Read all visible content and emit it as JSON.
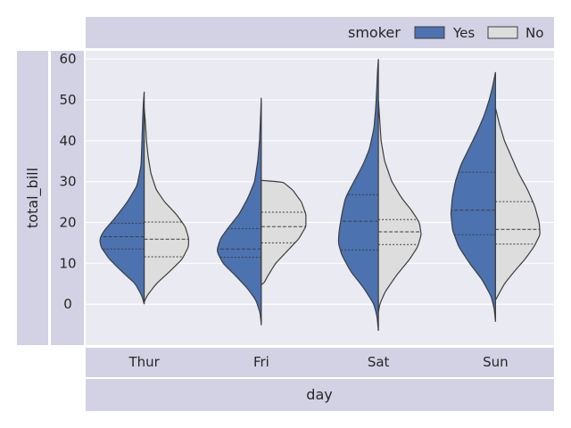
{
  "chart_data": {
    "type": "violin",
    "split": true,
    "title": "",
    "xlabel": "day",
    "ylabel": "total_bill",
    "categories": [
      "Thur",
      "Fri",
      "Sat",
      "Sun"
    ],
    "ylim": [
      -10,
      62
    ],
    "yticks": [
      0,
      10,
      20,
      30,
      40,
      50,
      60
    ],
    "grid": true,
    "legend": {
      "title": "smoker",
      "placement": "top-right",
      "entries": [
        {
          "label": "Yes",
          "color": "#4c72b0"
        },
        {
          "label": "No",
          "color": "#dddddd"
        }
      ]
    },
    "inner": "quartile",
    "series": [
      {
        "name": "Yes",
        "color": "#4c72b0",
        "side": "left",
        "distributions": [
          {
            "min": 0,
            "max": 52,
            "q1": 13.5,
            "median": 16.5,
            "q3": 19.8,
            "profile": [
              [
                0,
                0
              ],
              [
                2,
                0.05
              ],
              [
                5,
                0.2
              ],
              [
                8,
                0.5
              ],
              [
                11,
                0.78
              ],
              [
                14,
                0.97
              ],
              [
                16,
                1.0
              ],
              [
                18,
                0.9
              ],
              [
                21,
                0.66
              ],
              [
                25,
                0.38
              ],
              [
                29,
                0.16
              ],
              [
                34,
                0.07
              ],
              [
                40,
                0.05
              ],
              [
                45,
                0.035
              ],
              [
                49,
                0.02
              ],
              [
                52,
                0
              ]
            ]
          },
          {
            "min": -5,
            "max": 50.5,
            "q1": 11.5,
            "median": 13.5,
            "q3": 18.5,
            "profile": [
              [
                -5,
                0
              ],
              [
                -2,
                0.03
              ],
              [
                1,
                0.12
              ],
              [
                4,
                0.32
              ],
              [
                7,
                0.58
              ],
              [
                10,
                0.86
              ],
              [
                13,
                1.0
              ],
              [
                16,
                0.92
              ],
              [
                19,
                0.72
              ],
              [
                22,
                0.5
              ],
              [
                26,
                0.3
              ],
              [
                30,
                0.15
              ],
              [
                35,
                0.08
              ],
              [
                40,
                0.04
              ],
              [
                45,
                0.02
              ],
              [
                50.5,
                0
              ]
            ]
          },
          {
            "min": -6.5,
            "max": 60,
            "q1": 13.3,
            "median": 20.3,
            "q3": 26.8,
            "profile": [
              [
                -6.5,
                0
              ],
              [
                -3,
                0.03
              ],
              [
                0,
                0.1
              ],
              [
                4,
                0.33
              ],
              [
                8,
                0.62
              ],
              [
                12,
                0.82
              ],
              [
                15,
                0.9
              ],
              [
                18,
                0.88
              ],
              [
                22,
                0.82
              ],
              [
                26,
                0.74
              ],
              [
                30,
                0.55
              ],
              [
                34,
                0.35
              ],
              [
                38,
                0.2
              ],
              [
                43,
                0.1
              ],
              [
                48,
                0.06
              ],
              [
                53,
                0.035
              ],
              [
                57,
                0.02
              ],
              [
                60,
                0
              ]
            ]
          },
          {
            "min": -4.3,
            "max": 56.8,
            "q1": 17,
            "median": 23,
            "q3": 32.3,
            "profile": [
              [
                -4.3,
                0
              ],
              [
                -1,
                0.03
              ],
              [
                2,
                0.1
              ],
              [
                6,
                0.3
              ],
              [
                10,
                0.58
              ],
              [
                14,
                0.82
              ],
              [
                18,
                0.96
              ],
              [
                22,
                1.0
              ],
              [
                26,
                0.97
              ],
              [
                30,
                0.9
              ],
              [
                34,
                0.78
              ],
              [
                38,
                0.6
              ],
              [
                42,
                0.42
              ],
              [
                46,
                0.26
              ],
              [
                50,
                0.14
              ],
              [
                53,
                0.07
              ],
              [
                56.8,
                0
              ]
            ]
          }
        ]
      },
      {
        "name": "No",
        "color": "#dddddd",
        "side": "right",
        "distributions": [
          {
            "min": 0.5,
            "max": 48,
            "q1": 11.6,
            "median": 15.9,
            "q3": 20.1,
            "profile": [
              [
                0.5,
                0
              ],
              [
                2,
                0.06
              ],
              [
                5,
                0.27
              ],
              [
                8,
                0.57
              ],
              [
                11,
                0.85
              ],
              [
                14,
                0.99
              ],
              [
                16,
                1.0
              ],
              [
                19,
                0.92
              ],
              [
                22,
                0.72
              ],
              [
                25,
                0.46
              ],
              [
                28,
                0.27
              ],
              [
                32,
                0.15
              ],
              [
                36,
                0.09
              ],
              [
                40,
                0.05
              ],
              [
                44,
                0.03
              ],
              [
                48,
                0
              ]
            ]
          },
          {
            "min": 4.8,
            "max": 30.3,
            "q1": 15,
            "median": 19,
            "q3": 22.5,
            "profile": [
              [
                4.8,
                0
              ],
              [
                5,
                0.05
              ],
              [
                7,
                0.15
              ],
              [
                10,
                0.32
              ],
              [
                13,
                0.58
              ],
              [
                16,
                0.84
              ],
              [
                19,
                1.0
              ],
              [
                22,
                1.0
              ],
              [
                25,
                0.9
              ],
              [
                28,
                0.7
              ],
              [
                30.2,
                0.45
              ],
              [
                30.3,
                0
              ]
            ]
          },
          {
            "min": -2,
            "max": 50,
            "q1": 14.6,
            "median": 17.7,
            "q3": 20.7,
            "profile": [
              [
                -2,
                0
              ],
              [
                0,
                0.03
              ],
              [
                3,
                0.15
              ],
              [
                7,
                0.4
              ],
              [
                11,
                0.7
              ],
              [
                14,
                0.88
              ],
              [
                17,
                0.96
              ],
              [
                20,
                0.92
              ],
              [
                23,
                0.74
              ],
              [
                26,
                0.52
              ],
              [
                30,
                0.3
              ],
              [
                35,
                0.14
              ],
              [
                40,
                0.06
              ],
              [
                45,
                0.03
              ],
              [
                50,
                0
              ]
            ]
          },
          {
            "min": 1,
            "max": 48,
            "q1": 14.7,
            "median": 18.3,
            "q3": 25.1,
            "profile": [
              [
                1,
                0
              ],
              [
                2,
                0.05
              ],
              [
                5,
                0.2
              ],
              [
                8,
                0.42
              ],
              [
                11,
                0.66
              ],
              [
                14,
                0.86
              ],
              [
                17,
                1.0
              ],
              [
                20,
                0.98
              ],
              [
                24,
                0.88
              ],
              [
                28,
                0.72
              ],
              [
                32,
                0.52
              ],
              [
                36,
                0.36
              ],
              [
                40,
                0.2
              ],
              [
                44,
                0.09
              ],
              [
                48,
                0
              ]
            ]
          }
        ]
      }
    ]
  }
}
